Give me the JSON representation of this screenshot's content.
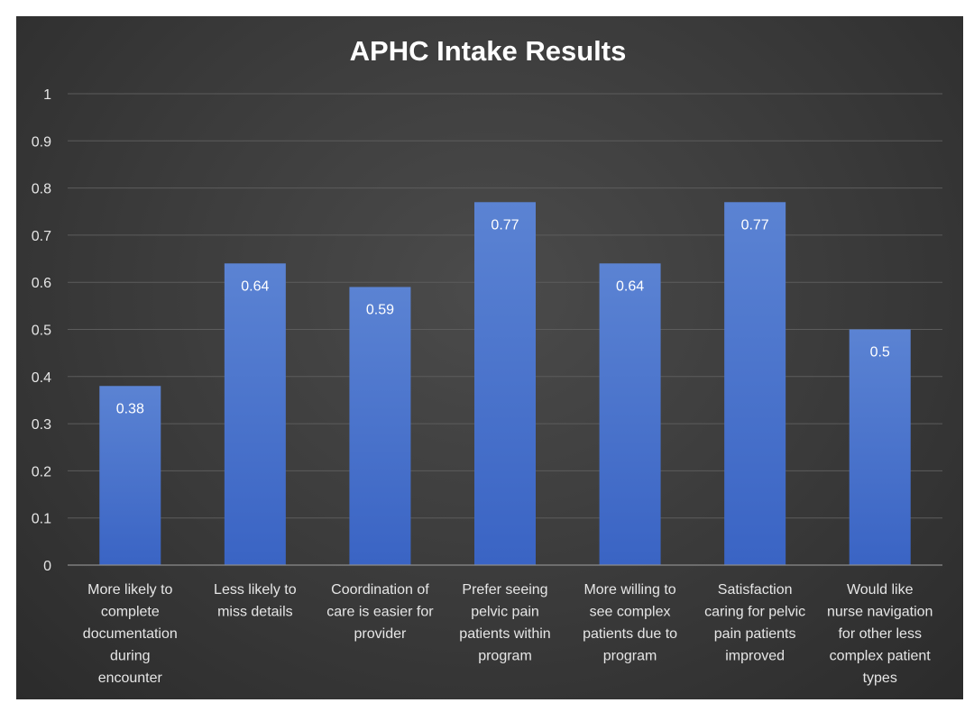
{
  "chart_data": {
    "type": "bar",
    "title": "APHC Intake Results",
    "categories": [
      [
        "More likely to",
        "complete",
        "documentation",
        "during",
        "encounter"
      ],
      [
        "Less likely to",
        "miss details"
      ],
      [
        "Coordination of",
        "care is easier for",
        "provider"
      ],
      [
        "Prefer seeing",
        "pelvic pain",
        "patients within",
        "program"
      ],
      [
        "More willing to",
        "see complex",
        "patients due to",
        "program"
      ],
      [
        "Satisfaction",
        "caring for pelvic",
        "pain patients",
        "improved"
      ],
      [
        "Would like",
        "nurse navigation",
        "for other less",
        "complex patient",
        "types"
      ]
    ],
    "values": [
      0.38,
      0.64,
      0.59,
      0.77,
      0.64,
      0.77,
      0.5
    ],
    "data_labels": [
      "0.38",
      "0.64",
      "0.59",
      "0.77",
      "0.64",
      "0.77",
      "0.5"
    ],
    "yticks": [
      "0",
      "0.1",
      "0.2",
      "0.3",
      "0.4",
      "0.5",
      "0.6",
      "0.7",
      "0.8",
      "0.9",
      "1"
    ],
    "ylim": [
      0,
      1
    ],
    "grid": true,
    "colors": {
      "bar_top": "#5b83d3",
      "bar_bottom": "#3a64c4",
      "background": "#3c3c3c"
    }
  }
}
